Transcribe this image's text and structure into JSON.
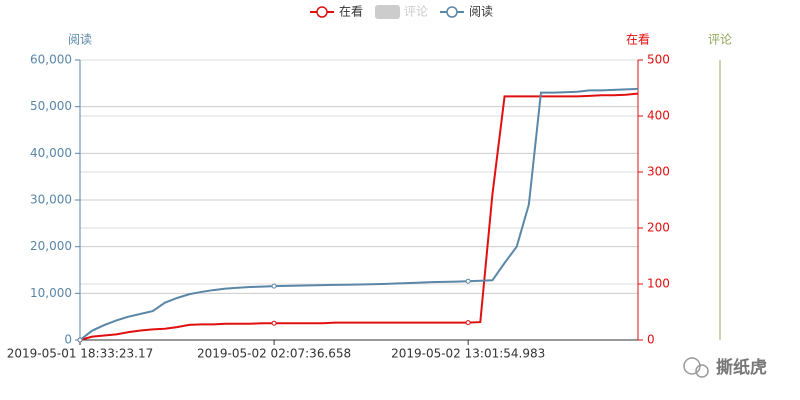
{
  "chart_data": {
    "type": "line",
    "categories": [
      "2019-05-01 18:33:23.17",
      null,
      null,
      null,
      null,
      null,
      null,
      null,
      null,
      null,
      null,
      null,
      null,
      null,
      null,
      null,
      "2019-05-02 02:07:36.658",
      null,
      null,
      null,
      null,
      null,
      null,
      null,
      null,
      null,
      null,
      null,
      null,
      null,
      null,
      null,
      "2019-05-02 13:01:54.983",
      null,
      null,
      null,
      null,
      null,
      null,
      null,
      null,
      null,
      null,
      null,
      null,
      null,
      null
    ],
    "series": [
      {
        "name": "在看",
        "color": "#e01010",
        "axis": "y2",
        "values": [
          0,
          6,
          8,
          10,
          14,
          17,
          19,
          20,
          23,
          27,
          28,
          28,
          29,
          29,
          29,
          30,
          30,
          30,
          30,
          30,
          30,
          31,
          31,
          31,
          31,
          31,
          31,
          31,
          31,
          31,
          31,
          31,
          31,
          32,
          260,
          435,
          435,
          435,
          435,
          435,
          435,
          435,
          436,
          437,
          437,
          438,
          440
        ]
      },
      {
        "name": "评论",
        "color": "#91a85b",
        "axis": "y3",
        "visible": false
      },
      {
        "name": "阅读",
        "color": "#5a87a8",
        "axis": "y",
        "values": [
          0,
          2000,
          3200,
          4200,
          5000,
          5600,
          6200,
          8000,
          9000,
          9800,
          10300,
          10700,
          11000,
          11200,
          11350,
          11450,
          11550,
          11600,
          11650,
          11700,
          11750,
          11800,
          11850,
          11900,
          11950,
          12000,
          12100,
          12200,
          12300,
          12400,
          12450,
          12500,
          12600,
          12700,
          12800,
          16500,
          20000,
          29000,
          53000,
          53000,
          53100,
          53200,
          53500,
          53500,
          53600,
          53700,
          53800
        ]
      }
    ],
    "y_axis_label": "阅读",
    "y2_axis_label": "在看",
    "y3_axis_label": "评论",
    "ylim": [
      0,
      60000
    ],
    "yticks": [
      0,
      {
        "value": 10000,
        "label": "10,000"
      },
      {
        "value": 20000,
        "label": "20,000"
      },
      {
        "value": 30000,
        "label": "30,000"
      },
      {
        "value": 40000,
        "label": "40,000"
      },
      {
        "value": 50000,
        "label": "50,000"
      },
      {
        "value": 60000,
        "label": "60,000"
      }
    ],
    "y2lim": [
      0,
      500
    ],
    "y2ticks": [
      0,
      100,
      200,
      300,
      400,
      500
    ],
    "grid": true,
    "watermark": "撕纸虎"
  }
}
